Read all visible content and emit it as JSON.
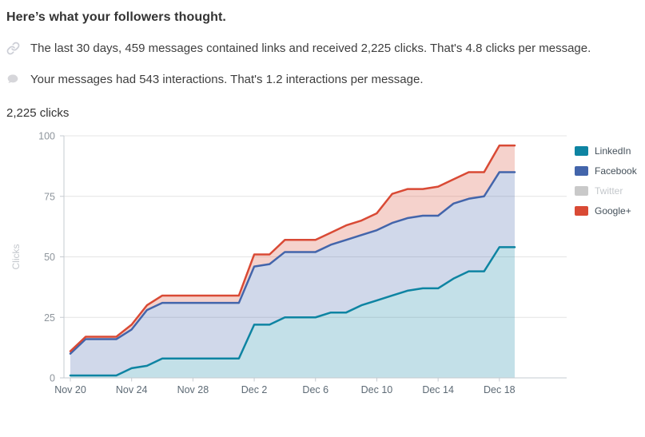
{
  "page": {
    "title": "Here’s what your followers thought.",
    "insights": [
      {
        "icon": "link-icon",
        "text": "The last 30 days, 459 messages contained links and received 2,225 clicks. That's 4.8 clicks per message."
      },
      {
        "icon": "speech-bubble-icon",
        "text": "Your messages had 543 interactions. That's 1.2 interactions per message."
      }
    ],
    "metric_label": "2,225 clicks"
  },
  "chart_data": {
    "type": "area",
    "stacked": true,
    "title": "2,225 clicks",
    "xlabel": "",
    "ylabel": "Clicks",
    "ylim": [
      0,
      100
    ],
    "yticks": [
      0,
      25,
      50,
      75,
      100
    ],
    "grid": true,
    "legend_position": "right",
    "x_tick_every": 4,
    "x_tick_labels": [
      "Nov 20",
      "Nov 24",
      "Nov 28",
      "Dec 2",
      "Dec 6",
      "Dec 10",
      "Dec 14",
      "Dec 18"
    ],
    "dates": [
      "Nov 20",
      "Nov 21",
      "Nov 22",
      "Nov 23",
      "Nov 24",
      "Nov 25",
      "Nov 26",
      "Nov 27",
      "Nov 28",
      "Nov 29",
      "Nov 30",
      "Dec 1",
      "Dec 2",
      "Dec 3",
      "Dec 4",
      "Dec 5",
      "Dec 6",
      "Dec 7",
      "Dec 8",
      "Dec 9",
      "Dec 10",
      "Dec 11",
      "Dec 12",
      "Dec 13",
      "Dec 14",
      "Dec 15",
      "Dec 16",
      "Dec 17",
      "Dec 18",
      "Dec 19"
    ],
    "series": [
      {
        "name": "LinkedIn",
        "color": "#0e84a2",
        "visible": true,
        "values": [
          1,
          1,
          1,
          1,
          4,
          5,
          8,
          8,
          8,
          8,
          8,
          8,
          22,
          22,
          25,
          25,
          25,
          27,
          27,
          30,
          32,
          34,
          36,
          37,
          37,
          41,
          44,
          44,
          54,
          54
        ]
      },
      {
        "name": "Facebook",
        "color": "#4365ab",
        "visible": true,
        "values": [
          9,
          15,
          15,
          15,
          16,
          23,
          23,
          23,
          23,
          23,
          23,
          23,
          24,
          25,
          27,
          27,
          27,
          28,
          30,
          29,
          29,
          30,
          30,
          30,
          30,
          31,
          30,
          31,
          31,
          31
        ]
      },
      {
        "name": "Twitter",
        "color": "#c9c9c9",
        "visible": false,
        "values": []
      },
      {
        "name": "Google+",
        "color": "#d94a35",
        "visible": true,
        "values": [
          1,
          1,
          1,
          1,
          2,
          2,
          3,
          3,
          3,
          3,
          3,
          3,
          5,
          4,
          5,
          5,
          5,
          5,
          6,
          6,
          7,
          12,
          12,
          11,
          12,
          10,
          11,
          10,
          11,
          11
        ]
      }
    ],
    "colors": {
      "gridline": "#e4e4e4",
      "axis": "#c6cbd1",
      "fill_opacity": 0.25
    }
  }
}
